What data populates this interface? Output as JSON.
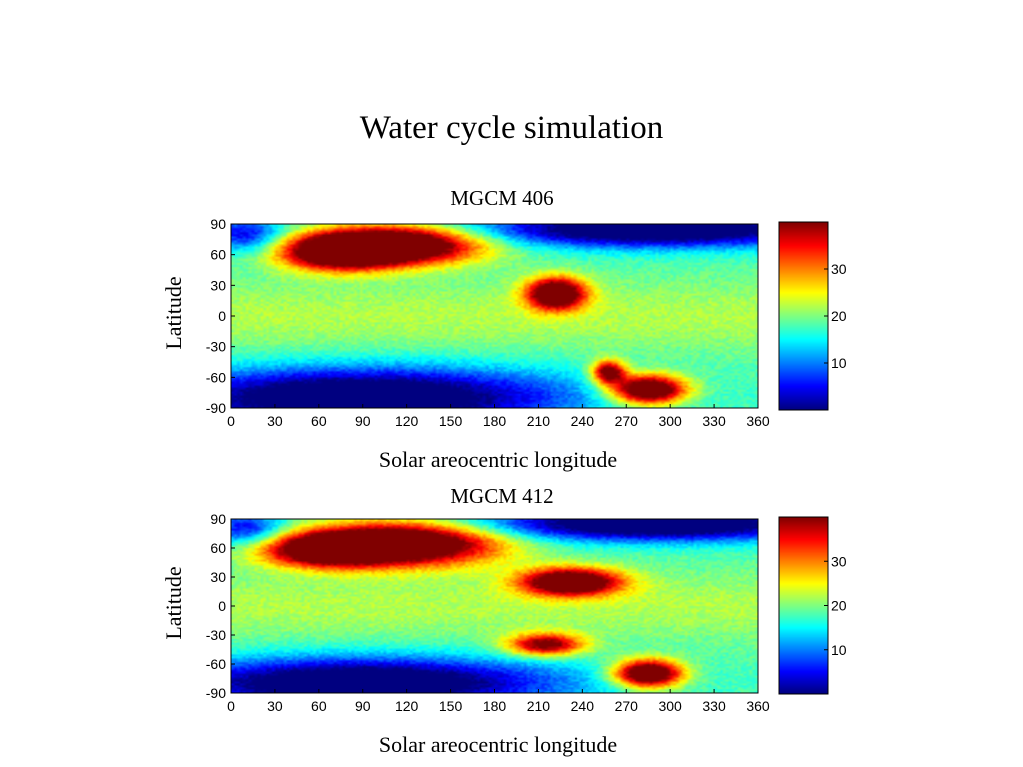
{
  "slide": {
    "title": "Water cycle simulation"
  },
  "chart_data": [
    {
      "type": "heatmap",
      "title": "MGCM 406",
      "xlabel": "Solar areocentric longitude",
      "ylabel": "Latitude",
      "xlim": [
        0,
        360
      ],
      "ylim": [
        -90,
        90
      ],
      "xticks": [
        "0",
        "30",
        "60",
        "90",
        "120",
        "150",
        "180",
        "210",
        "240",
        "270",
        "300",
        "330",
        "360"
      ],
      "yticks": [
        "90",
        "60",
        "30",
        "0",
        "-30",
        "-60",
        "-90"
      ],
      "colorbar": {
        "range": [
          0,
          40
        ],
        "ticks": [
          "10",
          "20",
          "30"
        ],
        "colormap": "jet"
      },
      "features": [
        {
          "x": 115,
          "y": 70,
          "value": 34,
          "sx": 40,
          "sy": 13
        },
        {
          "x": 75,
          "y": 62,
          "value": 29,
          "sx": 28,
          "sy": 12
        },
        {
          "x": 222,
          "y": 22,
          "value": 32,
          "sx": 14,
          "sy": 11
        },
        {
          "x": 285,
          "y": -72,
          "value": 34,
          "sx": 18,
          "sy": 10
        },
        {
          "x": 258,
          "y": -55,
          "value": 26,
          "sx": 8,
          "sy": 8
        },
        {
          "x": 90,
          "y": -80,
          "value": -26,
          "sx": 95,
          "sy": 20
        },
        {
          "x": 290,
          "y": 85,
          "value": -26,
          "sx": 85,
          "sy": 12
        },
        {
          "x": 10,
          "y": 80,
          "value": -14,
          "sx": 18,
          "sy": 12
        }
      ]
    },
    {
      "type": "heatmap",
      "title": "MGCM 412",
      "xlabel": "Solar areocentric longitude",
      "ylabel": "Latitude",
      "xlim": [
        0,
        360
      ],
      "ylim": [
        -90,
        90
      ],
      "xticks": [
        "0",
        "30",
        "60",
        "90",
        "120",
        "150",
        "180",
        "210",
        "240",
        "270",
        "300",
        "330",
        "360"
      ],
      "yticks": [
        "90",
        "60",
        "30",
        "0",
        "-30",
        "-60",
        "-90"
      ],
      "colorbar": {
        "range": [
          0,
          40
        ],
        "ticks": [
          "10",
          "20",
          "30"
        ],
        "colormap": "jet"
      },
      "features": [
        {
          "x": 120,
          "y": 65,
          "value": 34,
          "sx": 45,
          "sy": 16
        },
        {
          "x": 65,
          "y": 58,
          "value": 28,
          "sx": 30,
          "sy": 12
        },
        {
          "x": 232,
          "y": 25,
          "value": 32,
          "sx": 24,
          "sy": 10
        },
        {
          "x": 285,
          "y": -70,
          "value": 34,
          "sx": 16,
          "sy": 10
        },
        {
          "x": 215,
          "y": -40,
          "value": 24,
          "sx": 18,
          "sy": 8
        },
        {
          "x": 90,
          "y": -80,
          "value": -26,
          "sx": 90,
          "sy": 18
        },
        {
          "x": 290,
          "y": 85,
          "value": -26,
          "sx": 85,
          "sy": 12
        },
        {
          "x": 10,
          "y": 80,
          "value": -14,
          "sx": 18,
          "sy": 12
        }
      ]
    }
  ]
}
